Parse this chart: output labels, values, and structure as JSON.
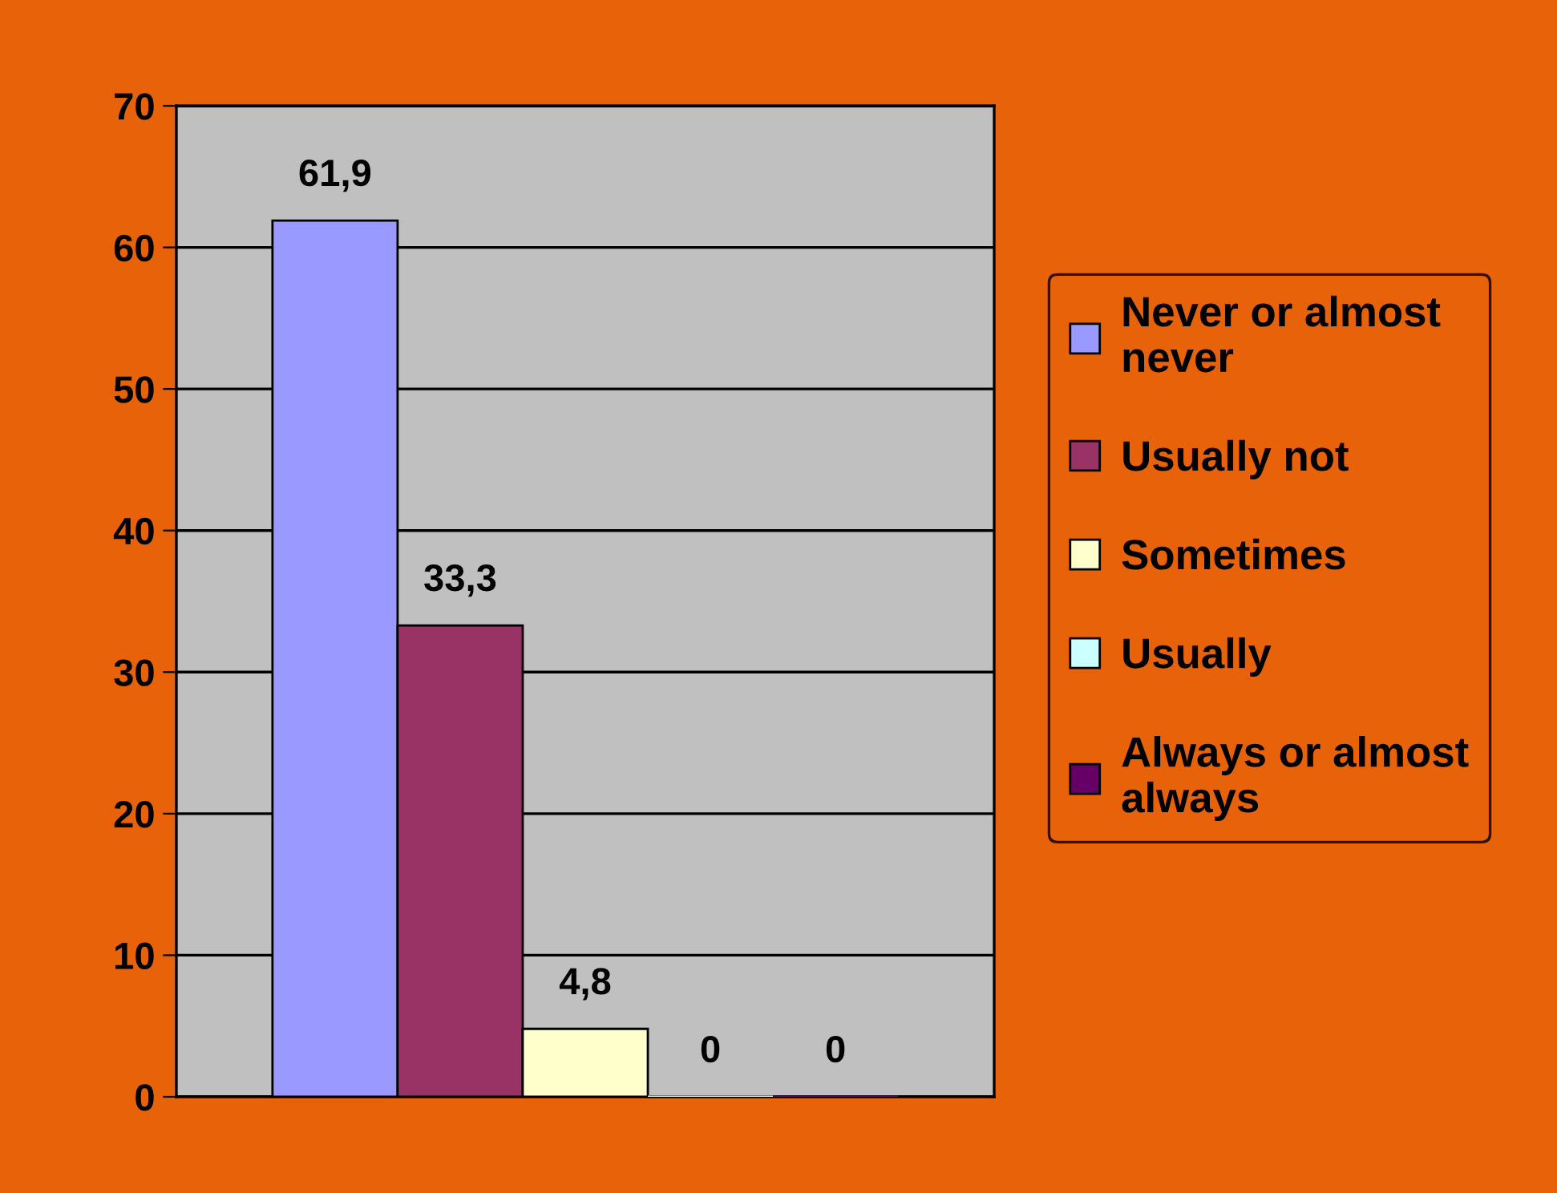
{
  "chart_data": {
    "type": "bar",
    "categories": [
      null
    ],
    "series": [
      {
        "name": "Never or almost never",
        "color": "#9999ff",
        "values": [
          61.9
        ],
        "value_labels": [
          "61,9"
        ]
      },
      {
        "name": "Usually not",
        "color": "#993366",
        "values": [
          33.3
        ],
        "value_labels": [
          "33,3"
        ]
      },
      {
        "name": "Sometimes",
        "color": "#ffffcc",
        "values": [
          4.8
        ],
        "value_labels": [
          "4,8"
        ]
      },
      {
        "name": "Usually",
        "color": "#ccffff",
        "values": [
          0
        ],
        "value_labels": [
          "0"
        ]
      },
      {
        "name": "Always or almost always",
        "color": "#660066",
        "values": [
          0
        ],
        "value_labels": [
          "0"
        ]
      }
    ],
    "ylim": [
      0,
      70
    ],
    "yticks": [
      0,
      10,
      20,
      30,
      40,
      50,
      60,
      70
    ],
    "grid": "y",
    "legend": "right"
  }
}
